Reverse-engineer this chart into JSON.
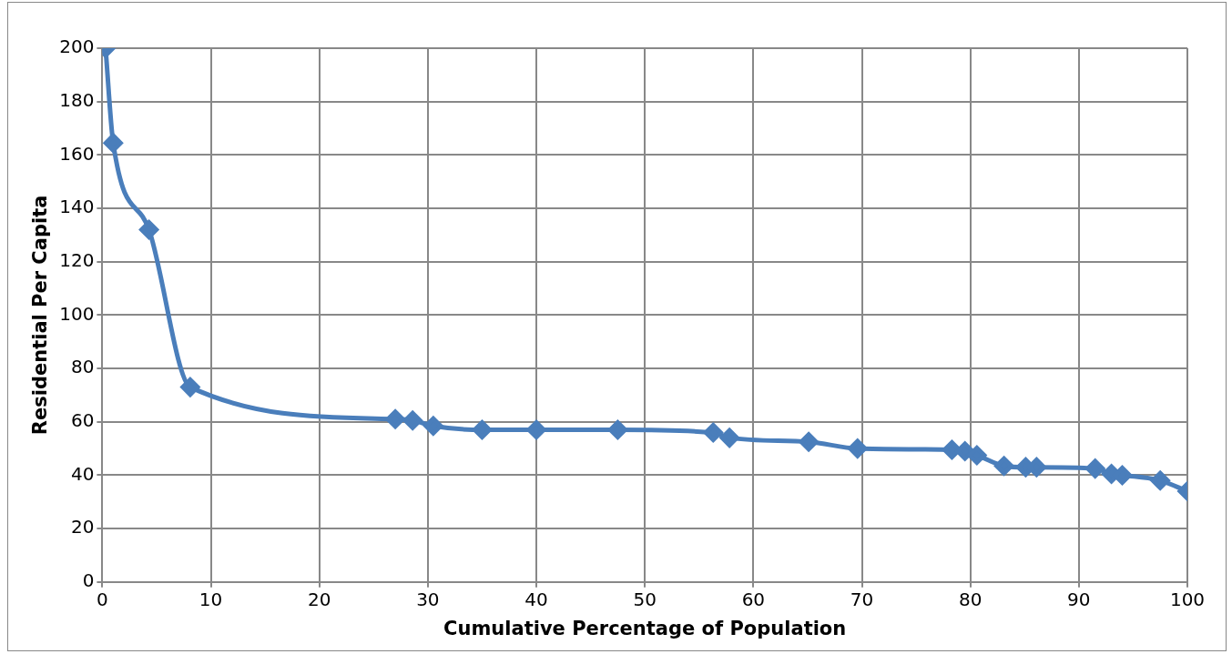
{
  "chart_data": {
    "type": "line",
    "xlabel": "Cumulative Percentage of Population",
    "ylabel": "Residential Per Capita",
    "series": [
      {
        "color": "#4a7ebb",
        "x": [
          0.3,
          1.0,
          4.3,
          8.1,
          27,
          28.6,
          30.5,
          35,
          40,
          47.5,
          56.3,
          57.8,
          65.1,
          69.6,
          78.3,
          79.5,
          80.6,
          83.1,
          85.1,
          86.1,
          91.5,
          93,
          94,
          97.5,
          100
        ],
        "values": [
          200,
          164.5,
          132,
          73,
          61,
          60.5,
          58.5,
          57,
          57,
          57,
          56,
          54,
          52.5,
          50,
          49.5,
          49,
          47.5,
          43.5,
          43,
          43,
          42.5,
          40.5,
          40,
          38,
          34
        ]
      }
    ],
    "xlim": [
      0,
      100
    ],
    "xticks": [
      0,
      10,
      20,
      30,
      40,
      50,
      60,
      70,
      80,
      90,
      100
    ],
    "ylim": [
      0,
      200
    ],
    "yticks": [
      0,
      20,
      40,
      60,
      80,
      100,
      120,
      140,
      160,
      180,
      200
    ],
    "grid": true,
    "legend": false,
    "marker": "diamond",
    "line_style": "solid"
  }
}
